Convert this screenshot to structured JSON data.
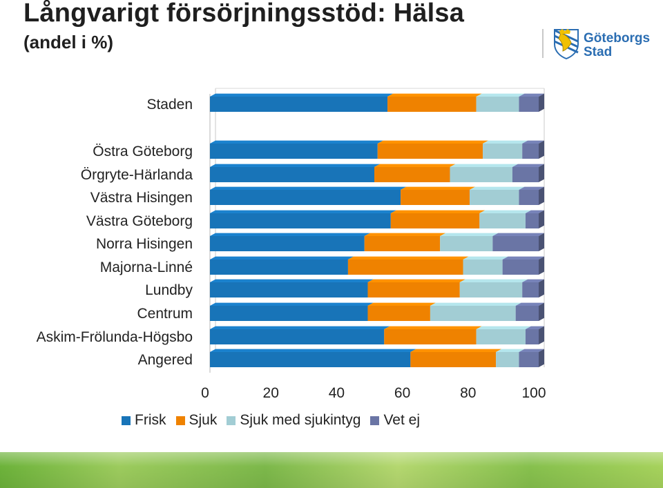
{
  "header": {
    "title": "Långvarigt försörjningsstöd: Hälsa",
    "subtitle": "(andel i %)"
  },
  "logo": {
    "line1": "Göteborgs",
    "line2": "Stad",
    "icon": "goteborg-coat-of-arms-icon"
  },
  "colors": {
    "frisk": "#1874b8",
    "sjuk": "#ef8200",
    "sjuk_med_sjukintyg": "#a2cdd4",
    "vet_ej": "#6a75a5"
  },
  "chart_data": {
    "type": "bar",
    "orientation": "horizontal",
    "stacked": true,
    "categories": [
      "Staden",
      "Östra Göteborg",
      "Örgryte-Härlanda",
      "Västra Hisingen",
      "Västra Göteborg",
      "Norra Hisingen",
      "Majorna-Linné",
      "Lundby",
      "Centrum",
      "Askim-Frölunda-Högsbo",
      "Angered"
    ],
    "series": [
      {
        "name": "Frisk",
        "values": [
          54,
          51,
          50,
          58,
          55,
          47,
          42,
          48,
          48,
          53,
          61
        ]
      },
      {
        "name": "Sjuk",
        "values": [
          27,
          32,
          23,
          21,
          27,
          23,
          35,
          28,
          19,
          28,
          26
        ]
      },
      {
        "name": "Sjuk med sjukintyg",
        "values": [
          13,
          12,
          19,
          15,
          14,
          16,
          12,
          19,
          26,
          15,
          7
        ]
      },
      {
        "name": "Vet ej",
        "values": [
          6,
          5,
          8,
          6,
          4,
          14,
          11,
          5,
          7,
          4,
          6
        ]
      }
    ],
    "xlim": [
      0,
      100
    ],
    "xticks": [
      "0",
      "20",
      "40",
      "60",
      "80",
      "100"
    ],
    "legend": "bottom",
    "grid": false
  }
}
